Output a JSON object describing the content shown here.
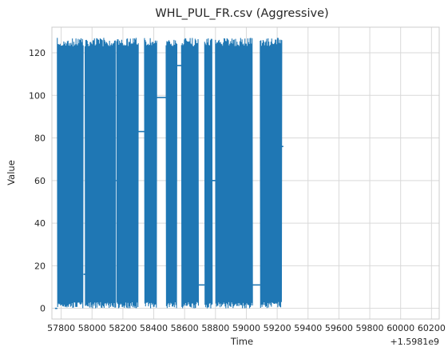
{
  "chart_data": {
    "type": "line",
    "title": "WHL_PUL_FR.csv (Aggressive)",
    "xlabel": "Time",
    "ylabel": "Value",
    "x_offset_label": "+1.5981e9",
    "xlim": [
      57740,
      60250
    ],
    "ylim": [
      -5,
      132
    ],
    "x_ticks": [
      57800,
      58000,
      58200,
      58400,
      58600,
      58800,
      59000,
      59200,
      59400,
      59600,
      59800,
      60000,
      60200
    ],
    "x_tick_labels": [
      "57800",
      "58000",
      "58200",
      "58400",
      "58600",
      "58800",
      "59000",
      "59200",
      "59400",
      "59600",
      "59800",
      "60000",
      "60200"
    ],
    "y_ticks": [
      0,
      20,
      40,
      60,
      80,
      100,
      120
    ],
    "y_tick_labels": [
      "0",
      "20",
      "40",
      "60",
      "80",
      "100",
      "120"
    ],
    "grid": true,
    "color": "#1f77b4",
    "segments": [
      {
        "type": "flat",
        "x": [
          57760,
          57775
        ],
        "y": 0
      },
      {
        "type": "oscillating",
        "x": [
          57775,
          57945
        ],
        "min": 0,
        "max": 127
      },
      {
        "type": "flat",
        "x": [
          57945,
          57955
        ],
        "y": 16
      },
      {
        "type": "oscillating",
        "x": [
          57955,
          58155
        ],
        "min": 0,
        "max": 127
      },
      {
        "type": "flat",
        "x": [
          58155,
          58160
        ],
        "y": 60
      },
      {
        "type": "oscillating",
        "x": [
          58160,
          58300
        ],
        "min": 0,
        "max": 127
      },
      {
        "type": "flat",
        "x": [
          58300,
          58340
        ],
        "y": 83
      },
      {
        "type": "oscillating",
        "x": [
          58340,
          58420
        ],
        "min": 0,
        "max": 127
      },
      {
        "type": "flat",
        "x": [
          58420,
          58480
        ],
        "y": 99
      },
      {
        "type": "oscillating",
        "x": [
          58480,
          58550
        ],
        "min": 0,
        "max": 127
      },
      {
        "type": "flat",
        "x": [
          58550,
          58580
        ],
        "y": 114
      },
      {
        "type": "oscillating",
        "x": [
          58580,
          58690
        ],
        "min": 0,
        "max": 127
      },
      {
        "type": "flat",
        "x": [
          58690,
          58730
        ],
        "y": 11
      },
      {
        "type": "oscillating",
        "x": [
          58730,
          58780
        ],
        "min": 0,
        "max": 127
      },
      {
        "type": "flat",
        "x": [
          58780,
          58800
        ],
        "y": 60
      },
      {
        "type": "oscillating",
        "x": [
          58800,
          59040
        ],
        "min": 0,
        "max": 127
      },
      {
        "type": "flat",
        "x": [
          59040,
          59090
        ],
        "y": 11
      },
      {
        "type": "oscillating",
        "x": [
          59090,
          59230
        ],
        "min": 0,
        "max": 127
      },
      {
        "type": "flat",
        "x": [
          59230,
          59240
        ],
        "y": 76
      }
    ]
  }
}
